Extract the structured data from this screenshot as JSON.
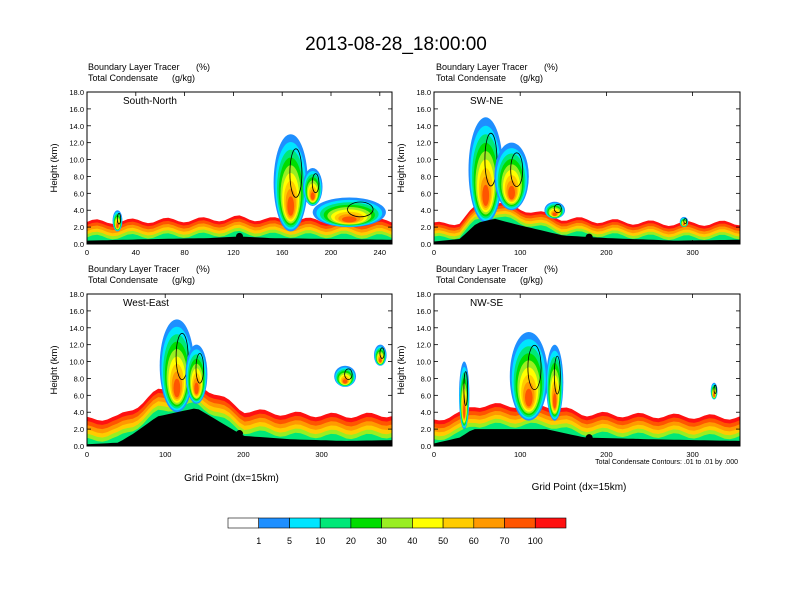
{
  "title": "2013-08-28_18:00:00",
  "chart_data": [
    {
      "type": "heatmap",
      "panel_label": "South-North",
      "subtitle_line1": "Boundary Layer Tracer",
      "subtitle_unit1": "(%)",
      "subtitle_line2": "Total Condensate",
      "subtitle_unit2": "(g/kg)",
      "ylabel": "Height (km)",
      "xlabel": "",
      "xlim": [
        0,
        250
      ],
      "ylim": [
        0,
        18
      ],
      "x_ticks": [
        "0",
        "40",
        "80",
        "120",
        "160",
        "200",
        "240"
      ],
      "y_ticks": [
        "0.0",
        "2.0",
        "4.0",
        "6.0",
        "8.0",
        "10.0",
        "12.0",
        "14.0",
        "16.0",
        "18.0"
      ],
      "terrain": [
        [
          0,
          0.4
        ],
        [
          30,
          0.5
        ],
        [
          60,
          0.6
        ],
        [
          100,
          0.7
        ],
        [
          125,
          0.9
        ],
        [
          150,
          0.7
        ],
        [
          200,
          0.6
        ],
        [
          250,
          0.5
        ]
      ],
      "surface_marker_x": 125,
      "plumes": [
        {
          "cx": 167,
          "base": 1.5,
          "top": 13.0,
          "w": 14
        },
        {
          "cx": 215,
          "base": 2.0,
          "top": 5.5,
          "w": 30
        },
        {
          "cx": 185,
          "base": 4.5,
          "top": 9.0,
          "w": 8
        },
        {
          "cx": 25,
          "base": 1.5,
          "top": 4.0,
          "w": 4
        }
      ],
      "tracer_layer_top": 2.2,
      "condensate_levels": ".01"
    },
    {
      "type": "heatmap",
      "panel_label": "SW-NE",
      "subtitle_line1": "Boundary Layer Tracer",
      "subtitle_unit1": "(%)",
      "subtitle_line2": "Total Condensate",
      "subtitle_unit2": "(g/kg)",
      "ylabel": "Height (km)",
      "xlabel": "",
      "xlim": [
        0,
        355
      ],
      "ylim": [
        0,
        18
      ],
      "x_ticks": [
        "0",
        "100",
        "200",
        "300"
      ],
      "y_ticks": [
        "0.0",
        "2.0",
        "4.0",
        "6.0",
        "8.0",
        "10.0",
        "12.0",
        "14.0",
        "16.0",
        "18.0"
      ],
      "terrain": [
        [
          0,
          0.3
        ],
        [
          30,
          0.6
        ],
        [
          50,
          2.5
        ],
        [
          70,
          3.0
        ],
        [
          100,
          2.2
        ],
        [
          150,
          1.0
        ],
        [
          200,
          0.7
        ],
        [
          280,
          0.4
        ],
        [
          355,
          0.5
        ]
      ],
      "surface_marker_x": 180,
      "plumes": [
        {
          "cx": 60,
          "base": 2.5,
          "top": 15.0,
          "w": 20
        },
        {
          "cx": 90,
          "base": 4.0,
          "top": 12.0,
          "w": 20
        },
        {
          "cx": 140,
          "base": 3.0,
          "top": 5.0,
          "w": 12
        },
        {
          "cx": 290,
          "base": 2.0,
          "top": 3.2,
          "w": 5
        }
      ],
      "tracer_layer_top": 2.0,
      "condensate_levels": ".01"
    },
    {
      "type": "heatmap",
      "panel_label": "West-East",
      "subtitle_line1": "Boundary Layer Tracer",
      "subtitle_unit1": "(%)",
      "subtitle_line2": "Total Condensate",
      "subtitle_unit2": "(g/kg)",
      "ylabel": "Height (km)",
      "xlabel": "Grid Point (dx=15km)",
      "xlim": [
        0,
        390
      ],
      "ylim": [
        0,
        18
      ],
      "x_ticks": [
        "0",
        "100",
        "200",
        "300"
      ],
      "y_ticks": [
        "0.0",
        "2.0",
        "4.0",
        "6.0",
        "8.0",
        "10.0",
        "12.0",
        "14.0",
        "16.0",
        "18.0"
      ],
      "terrain": [
        [
          0,
          0.2
        ],
        [
          40,
          0.4
        ],
        [
          60,
          1.5
        ],
        [
          90,
          3.5
        ],
        [
          140,
          4.5
        ],
        [
          200,
          1.2
        ],
        [
          260,
          0.8
        ],
        [
          330,
          0.6
        ],
        [
          390,
          0.7
        ]
      ],
      "surface_marker_x": 195,
      "plumes": [
        {
          "cx": 115,
          "base": 4.0,
          "top": 15.0,
          "w": 22
        },
        {
          "cx": 140,
          "base": 5.0,
          "top": 12.0,
          "w": 14
        },
        {
          "cx": 330,
          "base": 7.0,
          "top": 9.5,
          "w": 14
        },
        {
          "cx": 375,
          "base": 9.5,
          "top": 12.0,
          "w": 8
        }
      ],
      "tracer_layer_top": 3.0,
      "condensate_levels": ".01"
    },
    {
      "type": "heatmap",
      "panel_label": "NW-SE",
      "subtitle_line1": "Boundary Layer Tracer",
      "subtitle_unit1": "(%)",
      "subtitle_line2": "Total Condensate",
      "subtitle_unit2": "(g/kg)",
      "ylabel": "Height (km)",
      "xlabel": "Grid Point (dx=15km)",
      "xlim": [
        0,
        355
      ],
      "ylim": [
        0,
        18
      ],
      "x_ticks": [
        "0",
        "100",
        "200",
        "300"
      ],
      "y_ticks": [
        "0.0",
        "2.0",
        "4.0",
        "6.0",
        "8.0",
        "10.0",
        "12.0",
        "14.0",
        "16.0",
        "18.0"
      ],
      "terrain": [
        [
          0,
          0.3
        ],
        [
          30,
          1.0
        ],
        [
          45,
          2.0
        ],
        [
          80,
          2.0
        ],
        [
          130,
          2.0
        ],
        [
          175,
          1.0
        ],
        [
          250,
          0.8
        ],
        [
          355,
          0.6
        ]
      ],
      "surface_marker_x": 180,
      "plumes": [
        {
          "cx": 35,
          "base": 2.0,
          "top": 10.0,
          "w": 6
        },
        {
          "cx": 110,
          "base": 3.0,
          "top": 13.5,
          "w": 22
        },
        {
          "cx": 140,
          "base": 3.0,
          "top": 12.0,
          "w": 10
        },
        {
          "cx": 325,
          "base": 5.5,
          "top": 7.5,
          "w": 4
        }
      ],
      "tracer_layer_top": 2.8,
      "condensate_levels": ".01"
    }
  ],
  "contour_note": "Total Condensate Contours: .01 to .01 by .000",
  "colorbar": {
    "labels": [
      "1",
      "5",
      "10",
      "20",
      "30",
      "40",
      "50",
      "60",
      "70",
      "100"
    ],
    "colors": [
      "#ffffff",
      "#1e8fff",
      "#00e5ff",
      "#00e878",
      "#00dd00",
      "#99ee22",
      "#ffff00",
      "#ffcc00",
      "#ff9900",
      "#ff5500",
      "#ff1111"
    ]
  }
}
